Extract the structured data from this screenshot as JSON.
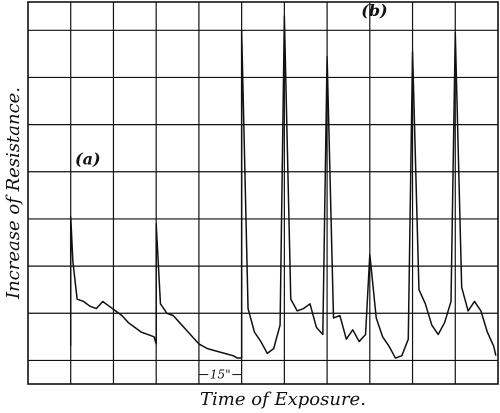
{
  "chart_data": {
    "type": "line",
    "title": "",
    "xlabel": "Time of Exposure.",
    "ylabel": "Increase of Resistance.",
    "grid": true,
    "annotations": [
      {
        "label": "(a)",
        "x": 1.1,
        "y": 4.15
      },
      {
        "label": "(b)",
        "x": 7.8,
        "y": 7.3
      },
      {
        "label": "15\"",
        "x_start": 4.0,
        "x_end": 5.0,
        "y": -0.3
      }
    ],
    "xlim": [
      0,
      11
    ],
    "ylim": [
      -0.5,
      7.6
    ],
    "series": [
      {
        "values": [
          [
            1.0,
            0.3
          ],
          [
            1.0,
            3.05
          ],
          [
            1.05,
            2.1
          ],
          [
            1.15,
            1.3
          ],
          [
            1.3,
            1.25
          ],
          [
            1.45,
            1.15
          ],
          [
            1.6,
            1.1
          ],
          [
            1.75,
            1.25
          ],
          [
            1.9,
            1.15
          ],
          [
            2.05,
            1.05
          ],
          [
            2.2,
            0.95
          ],
          [
            2.35,
            0.8
          ],
          [
            2.5,
            0.7
          ],
          [
            2.65,
            0.6
          ],
          [
            2.8,
            0.55
          ],
          [
            2.95,
            0.5
          ],
          [
            3.0,
            0.35
          ],
          [
            3.0,
            2.9
          ],
          [
            3.1,
            1.2
          ],
          [
            3.25,
            1.0
          ],
          [
            3.4,
            0.95
          ],
          [
            3.55,
            0.8
          ],
          [
            3.7,
            0.65
          ],
          [
            3.85,
            0.5
          ],
          [
            4.0,
            0.35
          ],
          [
            4.2,
            0.25
          ],
          [
            4.4,
            0.2
          ],
          [
            4.6,
            0.15
          ],
          [
            4.8,
            0.1
          ],
          [
            4.9,
            0.05
          ],
          [
            5.0,
            0.05
          ],
          [
            5.0,
            7.0
          ],
          [
            5.15,
            1.1
          ],
          [
            5.3,
            0.6
          ],
          [
            5.45,
            0.4
          ],
          [
            5.6,
            0.15
          ],
          [
            5.75,
            0.25
          ],
          [
            5.9,
            0.75
          ],
          [
            6.0,
            7.3
          ],
          [
            6.15,
            1.3
          ],
          [
            6.3,
            1.05
          ],
          [
            6.45,
            1.1
          ],
          [
            6.6,
            1.2
          ],
          [
            6.75,
            0.7
          ],
          [
            6.9,
            0.55
          ],
          [
            7.0,
            6.45
          ],
          [
            7.15,
            0.9
          ],
          [
            7.3,
            0.95
          ],
          [
            7.45,
            0.45
          ],
          [
            7.6,
            0.65
          ],
          [
            7.75,
            0.4
          ],
          [
            7.9,
            0.55
          ],
          [
            8.0,
            2.25
          ],
          [
            8.15,
            0.9
          ],
          [
            8.3,
            0.5
          ],
          [
            8.45,
            0.3
          ],
          [
            8.6,
            0.05
          ],
          [
            8.75,
            0.1
          ],
          [
            8.9,
            0.45
          ],
          [
            9.0,
            6.55
          ],
          [
            9.15,
            1.5
          ],
          [
            9.3,
            1.2
          ],
          [
            9.45,
            0.75
          ],
          [
            9.6,
            0.55
          ],
          [
            9.75,
            0.8
          ],
          [
            9.9,
            1.25
          ],
          [
            10.0,
            6.95
          ],
          [
            10.15,
            1.55
          ],
          [
            10.3,
            1.05
          ],
          [
            10.45,
            1.25
          ],
          [
            10.6,
            1.05
          ],
          [
            10.75,
            0.6
          ],
          [
            10.9,
            0.3
          ],
          [
            10.95,
            0.1
          ]
        ]
      }
    ]
  },
  "text": {
    "ylabel": "Increase of Resistance.",
    "xlabel": "Time of Exposure.",
    "annot_a": "(a)",
    "annot_b": "(b)",
    "annot_scale": "15\""
  }
}
